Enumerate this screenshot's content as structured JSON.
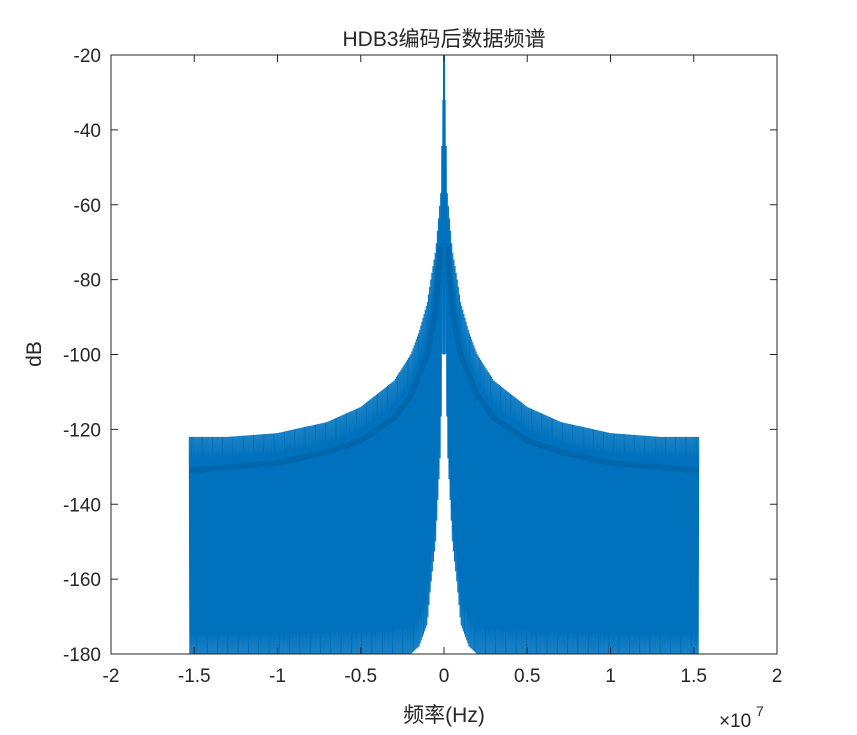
{
  "chart_data": {
    "type": "line",
    "title": "HDB3编码后数据频谱",
    "xlabel": "频率(Hz)",
    "ylabel": "dB",
    "x_exponent_label": "×10",
    "x_exponent_power": "7",
    "xlim": [
      -2,
      2
    ],
    "ylim": [
      -180,
      -20
    ],
    "x_unit_multiplier": 10000000,
    "xticks": [
      -2,
      -1.5,
      -1,
      -0.5,
      0,
      0.5,
      1,
      1.5,
      2
    ],
    "xtick_labels": [
      "-2",
      "-1.5",
      "-1",
      "-0.5",
      "0",
      "0.5",
      "1",
      "1.5",
      "2"
    ],
    "yticks": [
      -20,
      -40,
      -60,
      -80,
      -100,
      -120,
      -140,
      -160,
      -180
    ],
    "ytick_labels": [
      "-20",
      "-40",
      "-60",
      "-80",
      "-100",
      "-120",
      "-140",
      "-160",
      "-180"
    ],
    "grid": false,
    "series": [
      {
        "color": "#0072BD",
        "x_range": [
          -1.53,
          1.53
        ],
        "upper_envelope": {
          "x": [
            0.0,
            0.01,
            0.02,
            0.05,
            0.08,
            0.1,
            0.15,
            0.2,
            0.3,
            0.5,
            0.7,
            1.0,
            1.3,
            1.53
          ],
          "y": [
            -20,
            -38,
            -57,
            -72,
            -80,
            -86,
            -94,
            -100,
            -107,
            -114,
            -118,
            -121,
            -122,
            -122
          ]
        },
        "lower_envelope": {
          "x": [
            0.0,
            0.01,
            0.02,
            0.05,
            0.08,
            0.1,
            0.15,
            0.2,
            0.3,
            0.4,
            0.5,
            1.0,
            1.53
          ],
          "y": [
            -20,
            -100,
            -125,
            -150,
            -162,
            -172,
            -178,
            -180,
            -180,
            -180,
            -180,
            -180,
            -180
          ]
        },
        "dense_band": {
          "x": [
            0.02,
            0.05,
            0.1,
            0.2,
            0.3,
            0.5,
            0.7,
            1.0,
            1.53
          ],
          "y": [
            -72,
            -88,
            -100,
            -111,
            -117,
            -123,
            -126,
            -129,
            -131
          ]
        }
      }
    ]
  }
}
